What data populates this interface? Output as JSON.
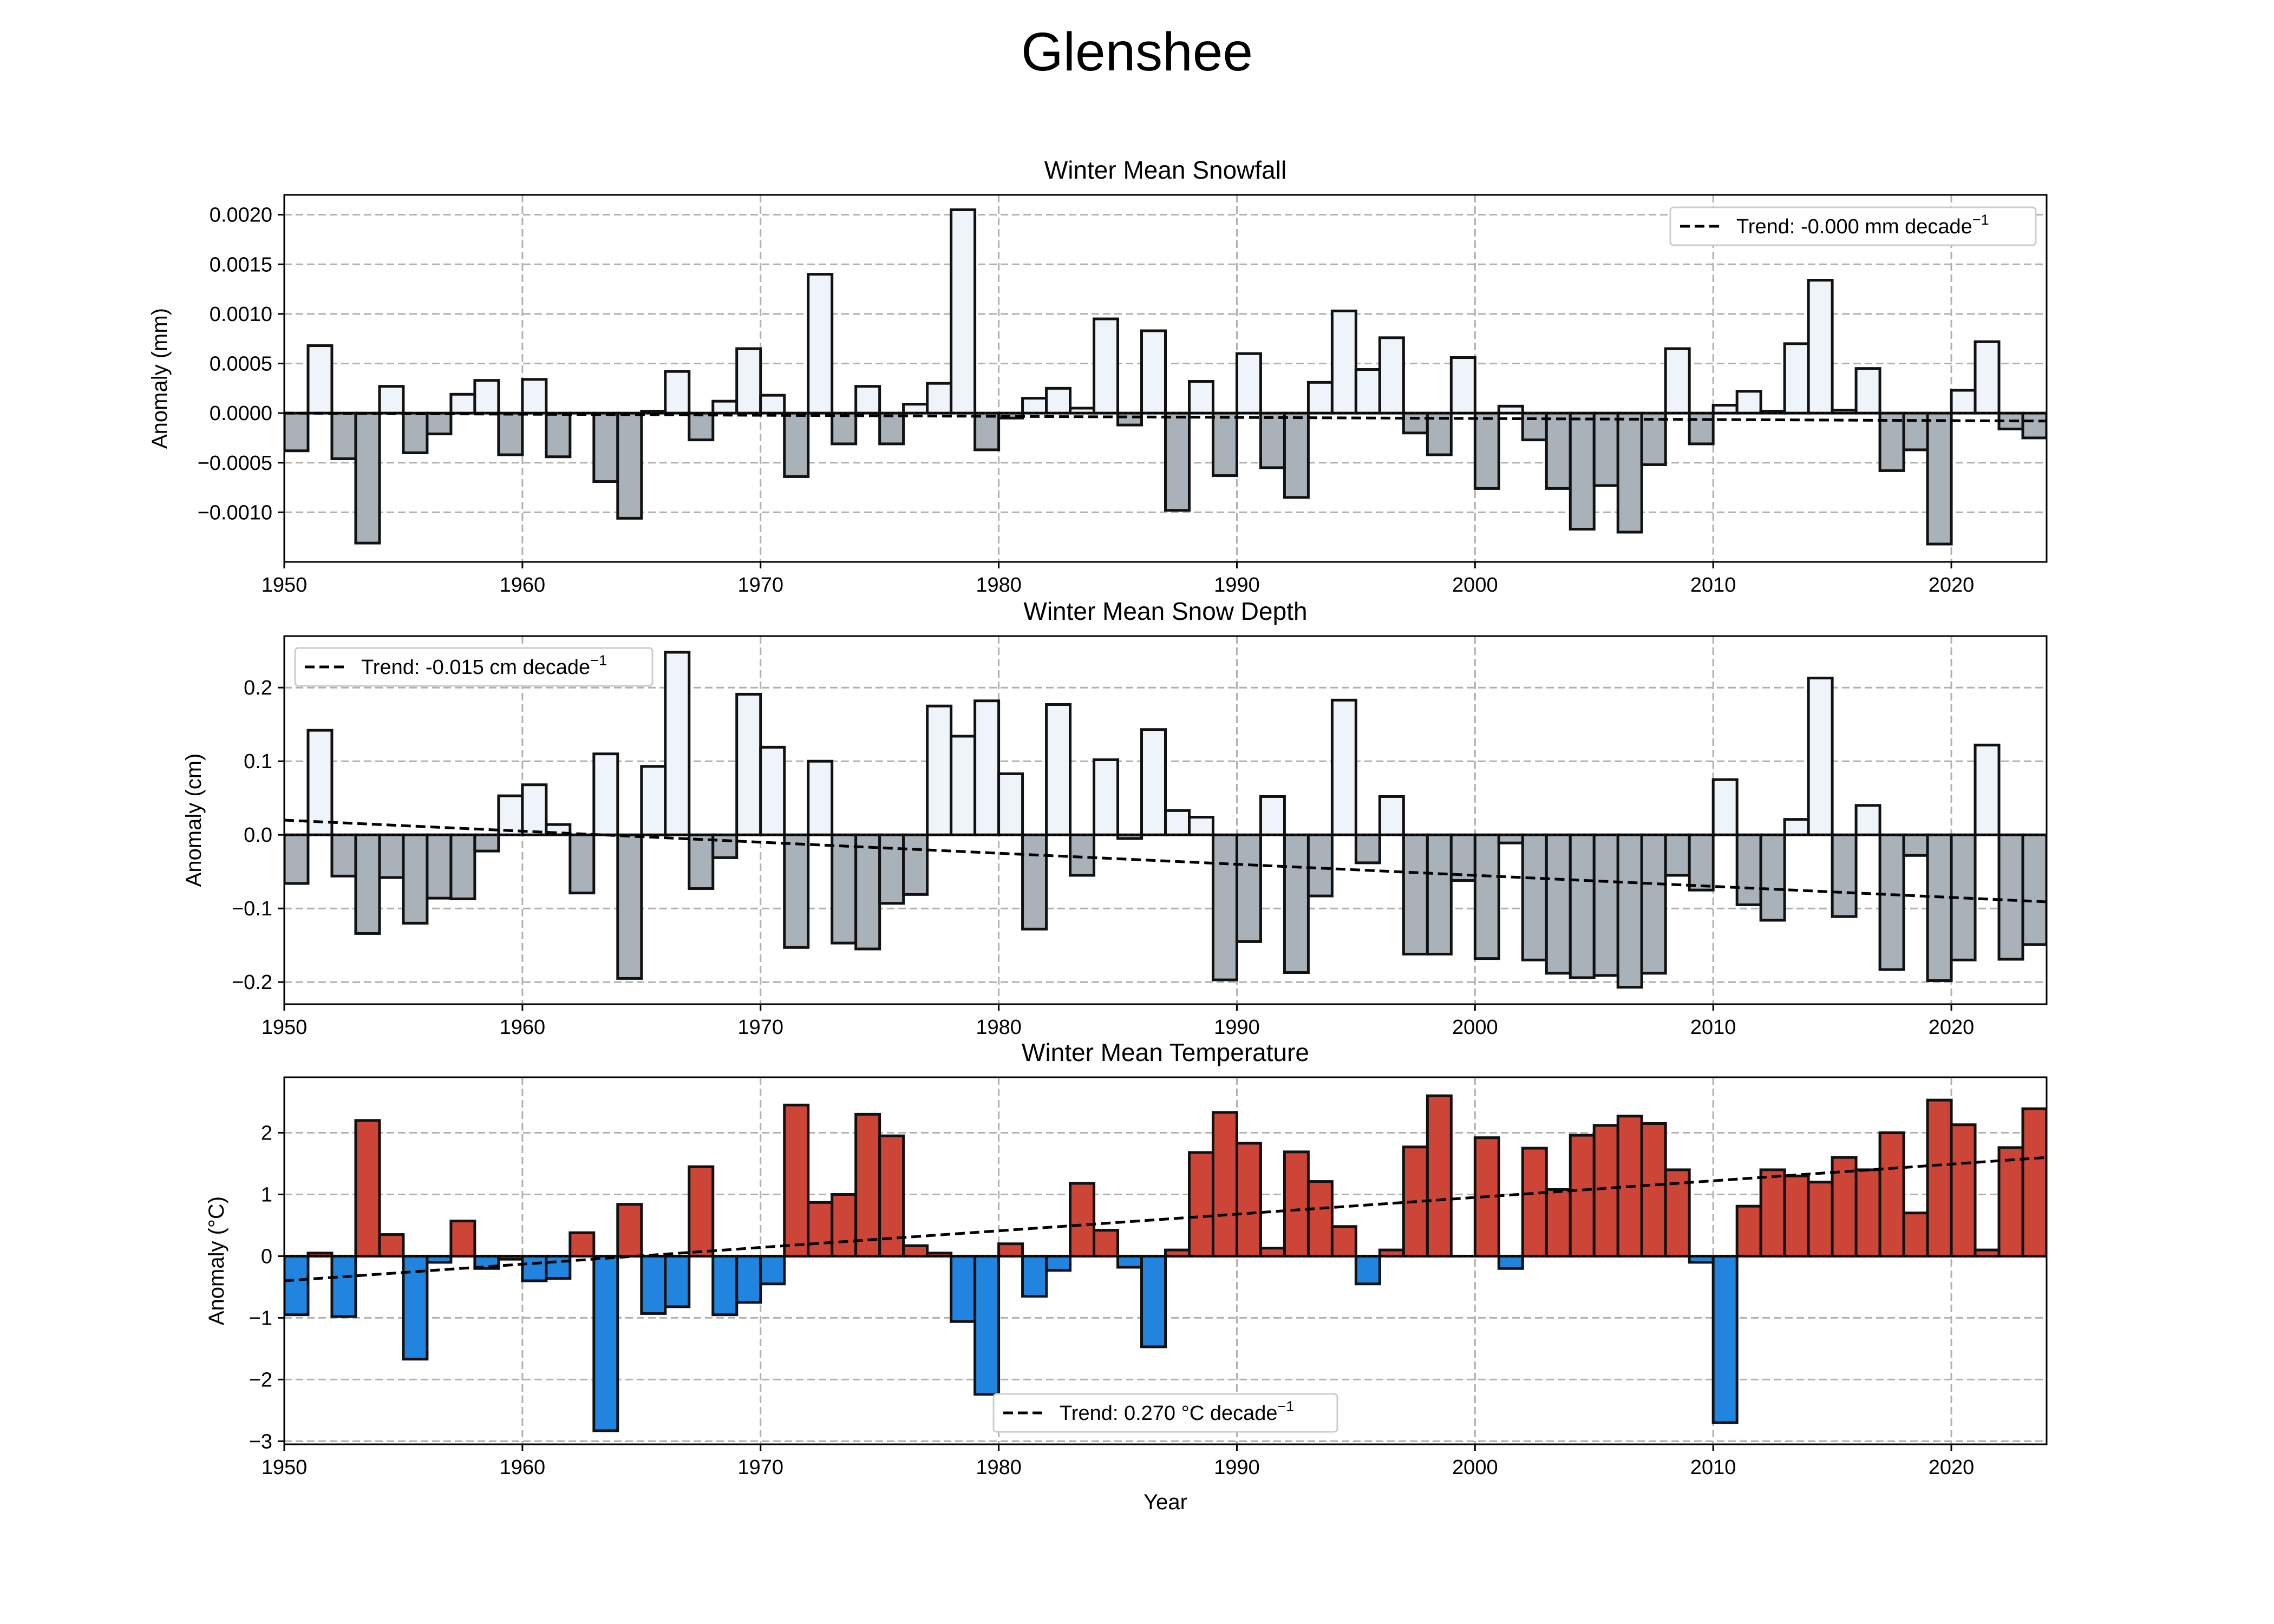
{
  "figure": {
    "title": "Glenshee"
  },
  "colors": {
    "snow_positive": "#eef4fa",
    "snow_negative": "#a9b1b9",
    "temp_positive": "#cc4536",
    "temp_negative": "#2185e0",
    "trend": "#000000",
    "grid": "#b0b0b0"
  },
  "chart_data": [
    {
      "type": "bar",
      "title": "Winter Mean Snowfall",
      "xlabel": "",
      "ylabel": "Anomaly (mm)",
      "xlim": [
        1950,
        2024
      ],
      "ylim": [
        -0.0015,
        0.0022
      ],
      "xticks": [
        1950,
        1960,
        1970,
        1980,
        1990,
        2000,
        2010,
        2020
      ],
      "xtick_labels": [
        "1950",
        "1960",
        "1970",
        "1980",
        "1990",
        "2000",
        "2010",
        "2020"
      ],
      "yticks": [
        -0.001,
        -0.0005,
        0,
        0.0005,
        0.001,
        0.0015,
        0.002
      ],
      "ytick_labels": [
        "−0.0010",
        "−0.0005",
        "0.0000",
        "0.0005",
        "0.0010",
        "0.0015",
        "0.0020"
      ],
      "grid": true,
      "legend": {
        "label": "Trend: -0.000 mm decade",
        "superscript": "−1",
        "position": "upper right"
      },
      "trend": {
        "start": [
          1950,
          0.0
        ],
        "end": [
          2024,
          -8e-05
        ]
      },
      "color_scheme": "snow",
      "x": [
        1950,
        1951,
        1952,
        1953,
        1954,
        1955,
        1956,
        1957,
        1958,
        1959,
        1960,
        1961,
        1962,
        1963,
        1964,
        1965,
        1966,
        1967,
        1968,
        1969,
        1970,
        1971,
        1972,
        1973,
        1974,
        1975,
        1976,
        1977,
        1978,
        1979,
        1980,
        1981,
        1982,
        1983,
        1984,
        1985,
        1986,
        1987,
        1988,
        1989,
        1990,
        1991,
        1992,
        1993,
        1994,
        1995,
        1996,
        1997,
        1998,
        1999,
        2000,
        2001,
        2002,
        2003,
        2004,
        2005,
        2006,
        2007,
        2008,
        2009,
        2010,
        2011,
        2012,
        2013,
        2014,
        2015,
        2016,
        2017,
        2018,
        2019,
        2020,
        2021,
        2022,
        2023
      ],
      "values": [
        -0.00038,
        0.00068,
        -0.00046,
        -0.00131,
        0.00027,
        -0.0004,
        -0.00021,
        0.00019,
        0.00033,
        -0.00042,
        0.00034,
        -0.00044,
        0.0,
        -0.00069,
        -0.00106,
        2e-05,
        0.00042,
        -0.00027,
        0.00012,
        0.00065,
        0.00018,
        -0.00064,
        0.0014,
        -0.00031,
        0.00027,
        -0.00031,
        9e-05,
        0.0003,
        0.00205,
        -0.00037,
        -5e-05,
        0.00015,
        0.00025,
        5e-05,
        0.00095,
        -0.00012,
        0.00083,
        -0.00098,
        0.00032,
        -0.00063,
        0.0006,
        -0.00055,
        -0.00085,
        0.00031,
        0.00103,
        0.00044,
        0.00076,
        -0.0002,
        -0.00042,
        0.00056,
        -0.00076,
        7e-05,
        -0.00027,
        -0.00076,
        -0.00117,
        -0.00073,
        -0.0012,
        -0.00052,
        0.00065,
        -0.00031,
        8e-05,
        0.00022,
        2e-05,
        0.0007,
        0.00134,
        3e-05,
        0.00045,
        -0.00058,
        -0.00037,
        -0.00132,
        0.00023,
        0.00072,
        -0.00016,
        -0.00025
      ]
    },
    {
      "type": "bar",
      "title": "Winter Mean Snow Depth",
      "xlabel": "",
      "ylabel": "Anomaly (cm)",
      "xlim": [
        1950,
        2024
      ],
      "ylim": [
        -0.23,
        0.27
      ],
      "xticks": [
        1950,
        1960,
        1970,
        1980,
        1990,
        2000,
        2010,
        2020
      ],
      "xtick_labels": [
        "1950",
        "1960",
        "1970",
        "1980",
        "1990",
        "2000",
        "2010",
        "2020"
      ],
      "yticks": [
        -0.2,
        -0.1,
        0,
        0.1,
        0.2
      ],
      "ytick_labels": [
        "−0.2",
        "−0.1",
        "0.0",
        "0.1",
        "0.2"
      ],
      "grid": true,
      "legend": {
        "label": "Trend: -0.015 cm decade",
        "superscript": "−1",
        "position": "upper left"
      },
      "trend": {
        "start": [
          1950,
          0.02
        ],
        "end": [
          2024,
          -0.091
        ]
      },
      "color_scheme": "snow",
      "x": [
        1950,
        1951,
        1952,
        1953,
        1954,
        1955,
        1956,
        1957,
        1958,
        1959,
        1960,
        1961,
        1962,
        1963,
        1964,
        1965,
        1966,
        1967,
        1968,
        1969,
        1970,
        1971,
        1972,
        1973,
        1974,
        1975,
        1976,
        1977,
        1978,
        1979,
        1980,
        1981,
        1982,
        1983,
        1984,
        1985,
        1986,
        1987,
        1988,
        1989,
        1990,
        1991,
        1992,
        1993,
        1994,
        1995,
        1996,
        1997,
        1998,
        1999,
        2000,
        2001,
        2002,
        2003,
        2004,
        2005,
        2006,
        2007,
        2008,
        2009,
        2010,
        2011,
        2012,
        2013,
        2014,
        2015,
        2016,
        2017,
        2018,
        2019,
        2020,
        2021,
        2022,
        2023
      ],
      "values": [
        -0.066,
        0.142,
        -0.056,
        -0.134,
        -0.058,
        -0.12,
        -0.086,
        -0.087,
        -0.022,
        0.053,
        0.068,
        0.014,
        -0.079,
        0.11,
        -0.195,
        0.093,
        0.248,
        -0.073,
        -0.031,
        0.191,
        0.119,
        -0.153,
        0.1,
        -0.147,
        -0.155,
        -0.093,
        -0.081,
        0.175,
        0.134,
        0.182,
        0.083,
        -0.128,
        0.177,
        -0.055,
        0.102,
        -0.005,
        0.143,
        0.033,
        0.024,
        -0.197,
        -0.145,
        0.052,
        -0.187,
        -0.083,
        0.183,
        -0.038,
        0.052,
        -0.162,
        -0.162,
        -0.062,
        -0.168,
        -0.011,
        -0.17,
        -0.188,
        -0.194,
        -0.191,
        -0.207,
        -0.188,
        -0.055,
        -0.075,
        0.075,
        -0.095,
        -0.116,
        0.021,
        0.213,
        -0.111,
        0.04,
        -0.183,
        -0.028,
        -0.198,
        -0.17,
        0.122,
        -0.169,
        -0.149
      ]
    },
    {
      "type": "bar",
      "title": "Winter Mean Temperature",
      "xlabel": "Year",
      "ylabel": "Anomaly (°C)",
      "xlim": [
        1950,
        2024
      ],
      "ylim": [
        -3.05,
        2.9
      ],
      "xticks": [
        1950,
        1960,
        1970,
        1980,
        1990,
        2000,
        2010,
        2020
      ],
      "xtick_labels": [
        "1950",
        "1960",
        "1970",
        "1980",
        "1990",
        "2000",
        "2010",
        "2020"
      ],
      "yticks": [
        -3,
        -2,
        -1,
        0,
        1,
        2
      ],
      "ytick_labels": [
        "−3",
        "−2",
        "−1",
        "0",
        "1",
        "2"
      ],
      "grid": true,
      "legend": {
        "label": "Trend: 0.270 °C decade",
        "superscript": "−1",
        "position": "lower center"
      },
      "trend": {
        "start": [
          1950,
          -0.4
        ],
        "end": [
          2024,
          1.6
        ]
      },
      "color_scheme": "temp",
      "x": [
        1950,
        1951,
        1952,
        1953,
        1954,
        1955,
        1956,
        1957,
        1958,
        1959,
        1960,
        1961,
        1962,
        1963,
        1964,
        1965,
        1966,
        1967,
        1968,
        1969,
        1970,
        1971,
        1972,
        1973,
        1974,
        1975,
        1976,
        1977,
        1978,
        1979,
        1980,
        1981,
        1982,
        1983,
        1984,
        1985,
        1986,
        1987,
        1988,
        1989,
        1990,
        1991,
        1992,
        1993,
        1994,
        1995,
        1996,
        1997,
        1998,
        1999,
        2000,
        2001,
        2002,
        2003,
        2004,
        2005,
        2006,
        2007,
        2008,
        2009,
        2010,
        2011,
        2012,
        2013,
        2014,
        2015,
        2016,
        2017,
        2018,
        2019,
        2020,
        2021,
        2022,
        2023
      ],
      "values": [
        -0.95,
        0.05,
        -0.98,
        2.2,
        0.35,
        -1.67,
        -0.1,
        0.57,
        -0.2,
        -0.05,
        -0.4,
        -0.36,
        0.38,
        -2.83,
        0.84,
        -0.93,
        -0.82,
        1.45,
        -0.95,
        -0.75,
        -0.45,
        2.45,
        0.87,
        1.0,
        2.3,
        1.95,
        0.17,
        0.05,
        -1.06,
        -2.24,
        0.2,
        -0.65,
        -0.23,
        1.18,
        0.42,
        -0.18,
        -1.47,
        0.1,
        1.68,
        2.33,
        1.83,
        0.13,
        1.69,
        1.21,
        0.48,
        -0.45,
        0.1,
        1.77,
        2.6,
        0.0,
        1.92,
        -0.2,
        1.75,
        1.08,
        1.96,
        2.12,
        2.27,
        2.15,
        1.4,
        -0.1,
        -2.7,
        0.81,
        1.4,
        1.3,
        1.2,
        1.6,
        1.4,
        2.0,
        0.7,
        2.53,
        2.13,
        0.1,
        1.76,
        2.39
      ]
    }
  ]
}
